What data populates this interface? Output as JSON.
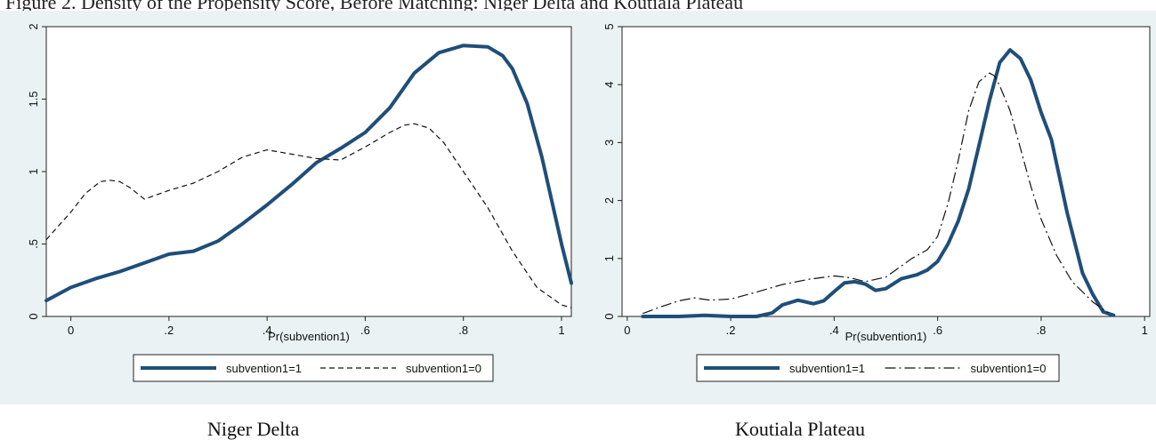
{
  "figure": {
    "title_text": "Figure 2. Density of the Propensity Score, Before Matching: Niger Delta and Koutiala Plateau",
    "captions": [
      "Niger Delta",
      "Koutiala Plateau"
    ]
  },
  "colors": {
    "series_main": "#1f4e79",
    "series_alt": "#111111",
    "panel_bg": "#eaf2f3",
    "plot_bg": "#ffffff"
  },
  "chart_data": [
    {
      "type": "line",
      "xlabel": "Pr(subvention1)",
      "ylabel": "",
      "xlim": [
        -0.05,
        1.02
      ],
      "ylim": [
        0,
        2
      ],
      "xticks": [
        0,
        0.2,
        0.4,
        0.6,
        0.8,
        1
      ],
      "xtick_labels": [
        "0",
        ".2",
        ".4",
        ".6",
        ".8",
        "1"
      ],
      "yticks": [
        0,
        0.5,
        1,
        1.5,
        2
      ],
      "ytick_labels": [
        "0",
        ".5",
        "1",
        "1.5",
        "2"
      ],
      "legend": "bottom",
      "series": [
        {
          "name": "subvention1=1",
          "style": "solid-thick",
          "x": [
            -0.05,
            0.0,
            0.05,
            0.1,
            0.15,
            0.2,
            0.25,
            0.3,
            0.35,
            0.4,
            0.45,
            0.5,
            0.55,
            0.6,
            0.65,
            0.7,
            0.75,
            0.8,
            0.85,
            0.88,
            0.9,
            0.93,
            0.96,
            1.0,
            1.02
          ],
          "y": [
            0.11,
            0.2,
            0.26,
            0.31,
            0.37,
            0.43,
            0.45,
            0.52,
            0.64,
            0.77,
            0.91,
            1.06,
            1.16,
            1.27,
            1.44,
            1.68,
            1.82,
            1.87,
            1.86,
            1.8,
            1.71,
            1.47,
            1.1,
            0.5,
            0.23
          ]
        },
        {
          "name": "subvention1=0",
          "style": "dashed",
          "x": [
            -0.05,
            0.0,
            0.03,
            0.06,
            0.08,
            0.1,
            0.12,
            0.15,
            0.2,
            0.25,
            0.3,
            0.35,
            0.4,
            0.45,
            0.5,
            0.55,
            0.6,
            0.65,
            0.68,
            0.7,
            0.73,
            0.76,
            0.8,
            0.85,
            0.9,
            0.95,
            1.0,
            1.02
          ],
          "y": [
            0.53,
            0.72,
            0.85,
            0.93,
            0.94,
            0.93,
            0.89,
            0.81,
            0.87,
            0.92,
            1.0,
            1.1,
            1.15,
            1.12,
            1.09,
            1.08,
            1.17,
            1.27,
            1.32,
            1.33,
            1.3,
            1.2,
            1.0,
            0.75,
            0.45,
            0.2,
            0.08,
            0.06
          ]
        }
      ]
    },
    {
      "type": "line",
      "xlabel": "Pr(subvention1)",
      "ylabel": "",
      "xlim": [
        -0.01,
        1.01
      ],
      "ylim": [
        0,
        5
      ],
      "xticks": [
        0,
        0.2,
        0.4,
        0.6,
        0.8,
        1
      ],
      "xtick_labels": [
        "0",
        ".2",
        ".4",
        ".6",
        ".8",
        "1"
      ],
      "yticks": [
        0,
        1,
        2,
        3,
        4,
        5
      ],
      "ytick_labels": [
        "0",
        "1",
        "2",
        "3",
        "4",
        "5"
      ],
      "legend": "bottom",
      "series": [
        {
          "name": "subvention1=1",
          "style": "solid-thick",
          "x": [
            0.03,
            0.1,
            0.15,
            0.2,
            0.25,
            0.28,
            0.3,
            0.33,
            0.36,
            0.38,
            0.4,
            0.42,
            0.44,
            0.46,
            0.48,
            0.5,
            0.53,
            0.56,
            0.58,
            0.6,
            0.62,
            0.64,
            0.66,
            0.68,
            0.7,
            0.72,
            0.74,
            0.76,
            0.78,
            0.8,
            0.82,
            0.85,
            0.88,
            0.9,
            0.92,
            0.94
          ],
          "y": [
            0.0,
            0.0,
            0.02,
            0.0,
            0.0,
            0.06,
            0.2,
            0.28,
            0.22,
            0.27,
            0.43,
            0.58,
            0.6,
            0.56,
            0.45,
            0.48,
            0.65,
            0.72,
            0.8,
            0.95,
            1.25,
            1.65,
            2.2,
            2.95,
            3.72,
            4.38,
            4.6,
            4.45,
            4.08,
            3.52,
            3.05,
            1.8,
            0.75,
            0.38,
            0.08,
            0.02
          ]
        },
        {
          "name": "subvention1=0",
          "style": "dashdot",
          "x": [
            0.03,
            0.06,
            0.1,
            0.13,
            0.16,
            0.2,
            0.25,
            0.3,
            0.35,
            0.4,
            0.43,
            0.46,
            0.5,
            0.55,
            0.58,
            0.6,
            0.62,
            0.64,
            0.66,
            0.68,
            0.7,
            0.71,
            0.72,
            0.74,
            0.76,
            0.78,
            0.8,
            0.83,
            0.86,
            0.9,
            0.93
          ],
          "y": [
            0.05,
            0.15,
            0.27,
            0.32,
            0.28,
            0.3,
            0.42,
            0.55,
            0.64,
            0.7,
            0.67,
            0.6,
            0.68,
            1.0,
            1.15,
            1.38,
            1.95,
            2.7,
            3.55,
            4.05,
            4.2,
            4.15,
            3.98,
            3.55,
            2.9,
            2.25,
            1.68,
            1.05,
            0.6,
            0.25,
            0.06
          ]
        }
      ]
    }
  ]
}
